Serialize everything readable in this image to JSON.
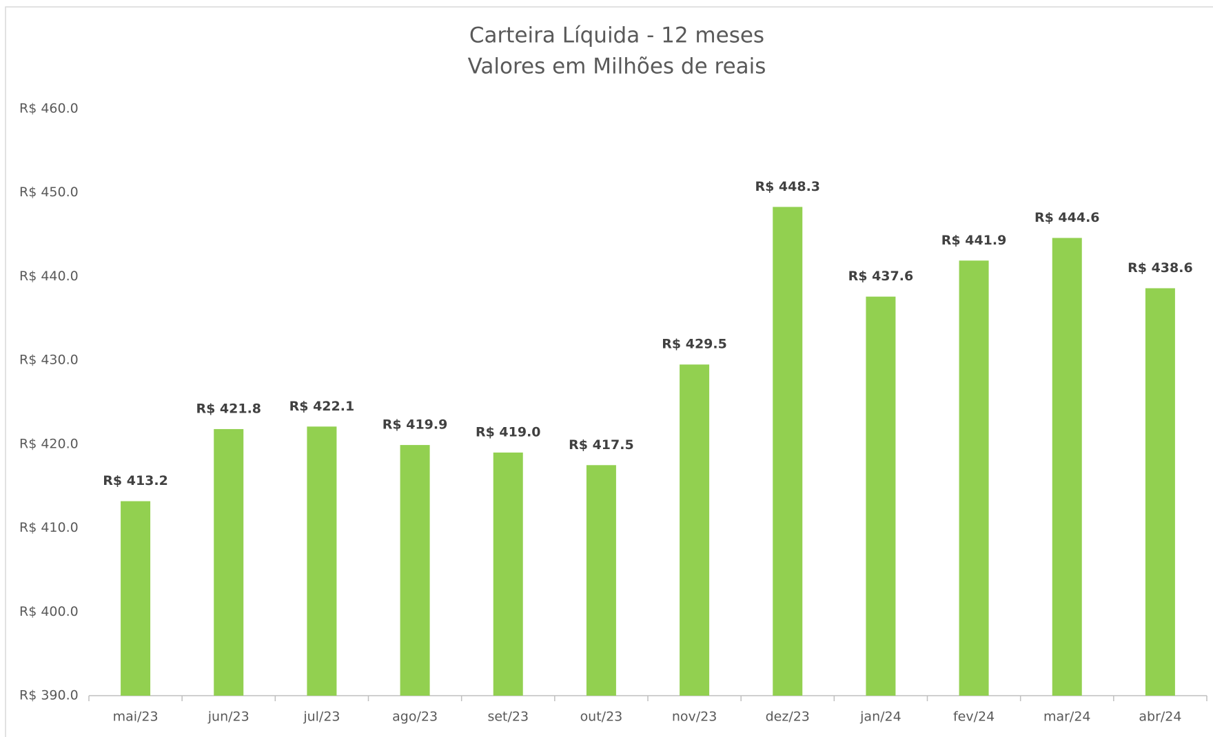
{
  "chart_data": {
    "type": "bar",
    "title": "Carteira Líquida - 12 meses",
    "subtitle": "Valores em Milhões de reais",
    "categories": [
      "mai/23",
      "jun/23",
      "jul/23",
      "ago/23",
      "set/23",
      "out/23",
      "nov/23",
      "dez/23",
      "jan/24",
      "fev/24",
      "mar/24",
      "abr/24"
    ],
    "values": [
      413.2,
      421.8,
      422.1,
      419.9,
      419.0,
      417.5,
      429.5,
      448.3,
      437.6,
      441.9,
      444.6,
      438.6
    ],
    "value_labels": [
      "R$ 413.2",
      "R$ 421.8",
      "R$ 422.1",
      "R$ 419.9",
      "R$ 419.0",
      "R$ 417.5",
      "R$ 429.5",
      "R$ 448.3",
      "R$ 437.6",
      "R$ 441.9",
      "R$ 444.6",
      "R$ 438.6"
    ],
    "color": "#92d050",
    "ylim": [
      390,
      460
    ],
    "yticks": [
      {
        "value": 390,
        "label": "R$ 390.0"
      },
      {
        "value": 400,
        "label": "R$ 400.0"
      },
      {
        "value": 410,
        "label": "R$ 410.0"
      },
      {
        "value": 420,
        "label": "R$ 420.0"
      },
      {
        "value": 430,
        "label": "R$ 430.0"
      },
      {
        "value": 440,
        "label": "R$ 440.0"
      },
      {
        "value": 450,
        "label": "R$ 450.0"
      },
      {
        "value": 460,
        "label": "R$ 460.0"
      }
    ],
    "grid": false
  }
}
